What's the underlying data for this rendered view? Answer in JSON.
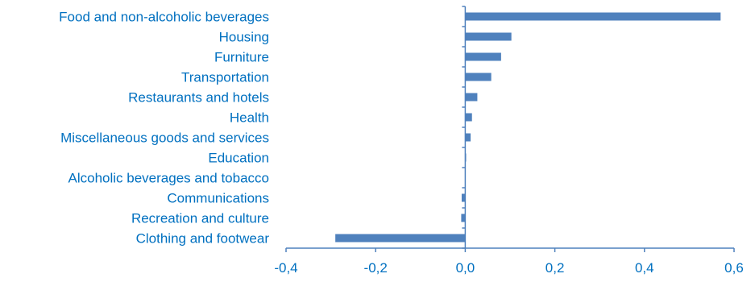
{
  "chart_data": {
    "type": "bar",
    "orientation": "horizontal",
    "title": "",
    "xlabel": "",
    "ylabel": "",
    "categories": [
      "Food and non-alcoholic beverages",
      "Housing",
      "Furniture",
      "Transportation",
      "Restaurants and hotels",
      "Health",
      "Miscellaneous goods and services",
      "Education",
      "Alcoholic beverages and tobacco",
      "Communications",
      "Recreation and culture",
      "Clothing and footwear"
    ],
    "values": [
      0.57,
      0.103,
      0.08,
      0.058,
      0.027,
      0.015,
      0.012,
      0.002,
      0.0,
      -0.008,
      -0.009,
      -0.29
    ],
    "xlim": [
      -0.4,
      0.6
    ],
    "xticks": [
      -0.4,
      -0.2,
      0.0,
      0.2,
      0.4,
      0.6
    ],
    "xtick_labels": [
      "-0,4",
      "-0,2",
      "0,0",
      "0,2",
      "0,4",
      "0,6"
    ],
    "grid": false,
    "legend": "none",
    "bar_color": "#4f81bd",
    "label_color": "#0070c0",
    "axis_color": "#4f81bd"
  }
}
